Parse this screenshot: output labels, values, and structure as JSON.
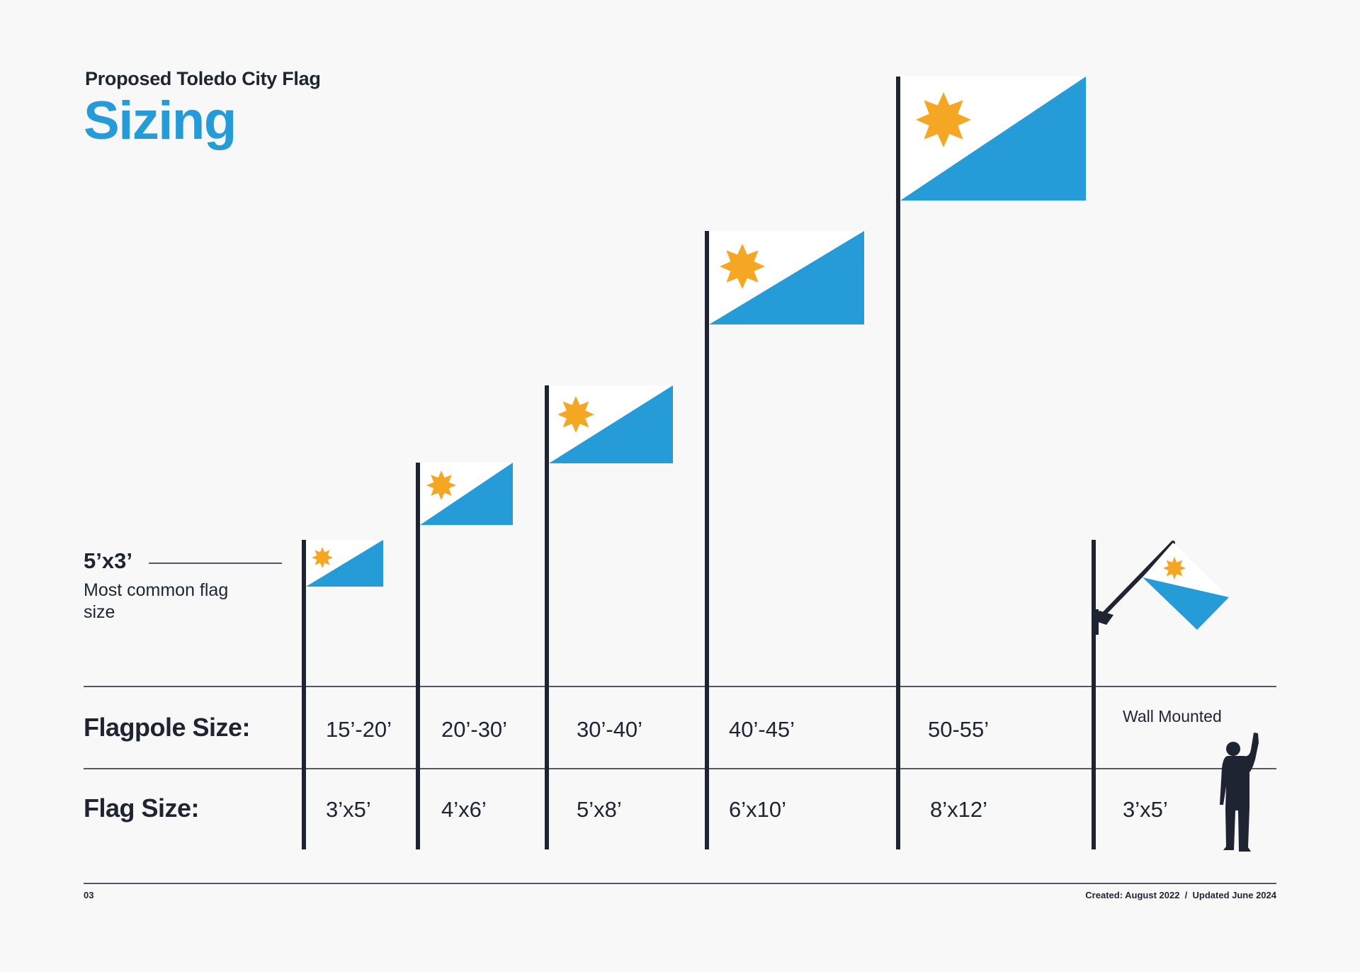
{
  "header": {
    "subtitle": "Proposed Toledo City Flag",
    "title": "Sizing"
  },
  "callout": {
    "size": "5’x3’",
    "note": "Most common flag size"
  },
  "rows": {
    "flagpole_label": "Flagpole Size:",
    "flag_label": "Flag Size:"
  },
  "columns": [
    {
      "pole": "15’-20’",
      "flag": "3’x5’"
    },
    {
      "pole": "20’-30’",
      "flag": "4’x6’"
    },
    {
      "pole": "30’-40’",
      "flag": "5’x8’"
    },
    {
      "pole": "40’-45’",
      "flag": "6’x10’"
    },
    {
      "pole": "50-55’",
      "flag": "8’x12’"
    },
    {
      "pole": "Wall Mounted",
      "flag": "3’x5’"
    }
  ],
  "footer": {
    "page_number": "03",
    "dates": "Created: August 2022  /  Updated June 2024"
  },
  "colors": {
    "blue": "#259cd7",
    "star": "#f5a623",
    "navy": "#1f2433",
    "white": "#ffffff"
  },
  "icons": [
    "flag-icon",
    "star-icon",
    "person-silhouette-icon"
  ]
}
